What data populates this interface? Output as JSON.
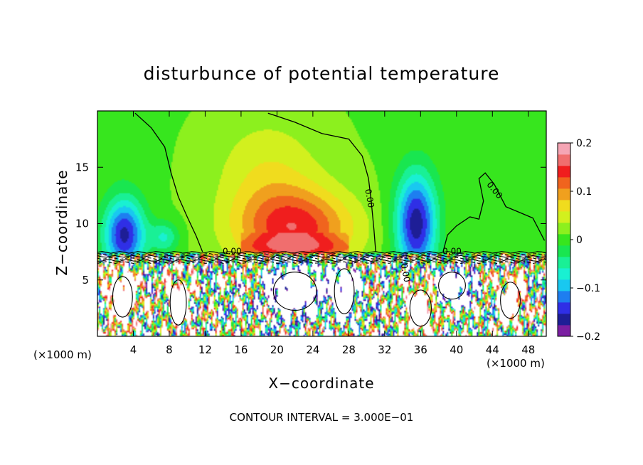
{
  "chart_data": {
    "type": "heatmap",
    "title": "disturbunce of potential temperature",
    "xlabel": "X−coordinate",
    "ylabel": "Z−coordinate",
    "x_unit": "(×1000 m)",
    "x_unit_right": "(×1000 m)",
    "footer": "CONTOUR INTERVAL = 3.000E−01",
    "xlim": [
      0,
      50
    ],
    "ylim": [
      0,
      20
    ],
    "x_ticks": [
      4,
      8,
      12,
      16,
      20,
      24,
      28,
      32,
      36,
      40,
      44,
      48
    ],
    "y_ticks": [
      5,
      10,
      15
    ],
    "colorbar": {
      "min": -0.2,
      "max": 0.2,
      "ticks": [
        0.2,
        0.1,
        0,
        -0.1,
        -0.2
      ],
      "tick_labels": [
        "0.2",
        "0.1",
        "0",
        "−0.1",
        "−0.2"
      ],
      "colors": [
        "#7b1fa2",
        "#1e1e96",
        "#2f2fe6",
        "#1e7ef0",
        "#19c8f0",
        "#19f0d2",
        "#19f096",
        "#19e650",
        "#37e61e",
        "#8cf01e",
        "#d2f01e",
        "#f0dc1e",
        "#f0a01e",
        "#f0641e",
        "#f01e1e",
        "#f06e6e",
        "#f5a5b4"
      ]
    },
    "contour_labels": [
      {
        "text": "0.00",
        "x": 30.0,
        "z": 12.2,
        "rotate": 80
      },
      {
        "text": "0.00",
        "x": 44.0,
        "z": 12.8,
        "rotate": 50
      },
      {
        "text": "0.00",
        "x": 15.0,
        "z": 7.3,
        "rotate": 0
      },
      {
        "text": "0.00",
        "x": 39.5,
        "z": 7.3,
        "rotate": 0
      },
      {
        "text": "0.00",
        "x": 34.0,
        "z": 5.6,
        "rotate": 80
      }
    ],
    "contour_zero": [
      [
        [
          4.2,
          19.8
        ],
        [
          6,
          18.5
        ],
        [
          7.5,
          16.8
        ],
        [
          8.2,
          14.5
        ],
        [
          9,
          12.4
        ],
        [
          10,
          10.6
        ],
        [
          11,
          8.9
        ],
        [
          11.7,
          7.5
        ]
      ],
      [
        [
          19,
          19.8
        ],
        [
          22,
          19
        ],
        [
          25,
          18
        ],
        [
          28,
          17.5
        ],
        [
          29.5,
          16
        ],
        [
          30.2,
          14
        ],
        [
          30.5,
          12
        ],
        [
          30.8,
          9.5
        ],
        [
          31,
          7.5
        ]
      ],
      [
        [
          38.5,
          7.5
        ],
        [
          39,
          9
        ],
        [
          40,
          9.8
        ],
        [
          41.5,
          10.6
        ],
        [
          42.5,
          10.4
        ],
        [
          43,
          12
        ],
        [
          42.5,
          14
        ],
        [
          43.2,
          14.5
        ],
        [
          44.2,
          13.5
        ],
        [
          45.5,
          11.5
        ],
        [
          47,
          11
        ],
        [
          48.5,
          10.5
        ],
        [
          49.8,
          8.5
        ]
      ]
    ],
    "upper_blobs": [
      {
        "kind": "warm",
        "x": 22,
        "z": 9.5,
        "sx": 6.5,
        "sz": 3.5,
        "a": 0.13
      },
      {
        "kind": "warm",
        "x": 19,
        "z": 14.5,
        "sx": 6,
        "sz": 5,
        "a": 0.045
      },
      {
        "kind": "cool",
        "x": 3,
        "z": 9.0,
        "sx": 2.3,
        "sz": 3.2,
        "a": -0.17
      },
      {
        "kind": "cool",
        "x": 7.5,
        "z": 8.8,
        "sx": 1.6,
        "sz": 1.4,
        "a": -0.07
      },
      {
        "kind": "cool",
        "x": 35.5,
        "z": 10,
        "sx": 2.3,
        "sz": 4.5,
        "a": -0.18
      },
      {
        "kind": "cool",
        "x": 46,
        "z": 15,
        "sx": 4.5,
        "sz": 3,
        "a": -0.015
      },
      {
        "kind": "cool",
        "x": 2,
        "z": 16,
        "sx": 3,
        "sz": 3,
        "a": -0.01
      }
    ]
  }
}
